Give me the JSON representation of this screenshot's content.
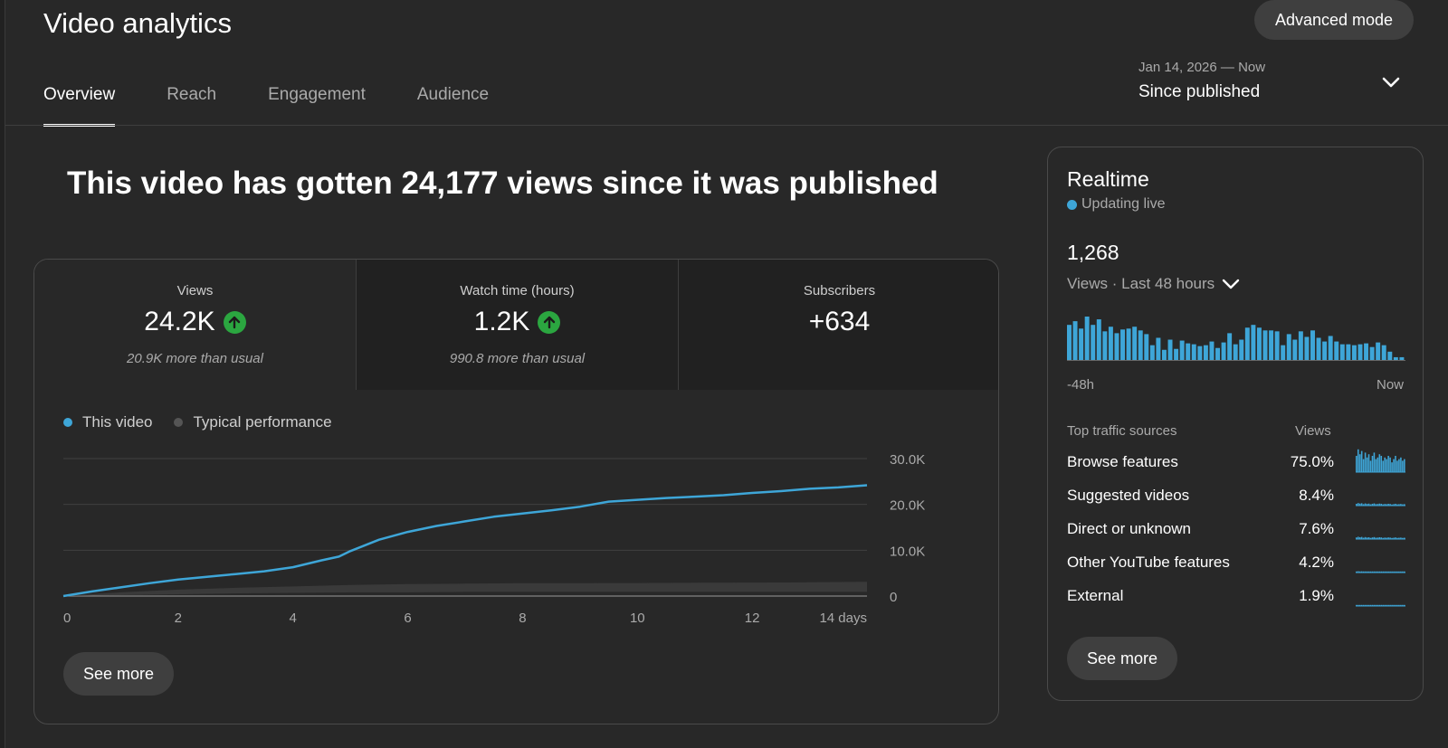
{
  "header": {
    "title": "Video analytics",
    "advanced_mode_label": "Advanced mode"
  },
  "tabs": [
    {
      "label": "Overview",
      "active": true
    },
    {
      "label": "Reach",
      "active": false
    },
    {
      "label": "Engagement",
      "active": false
    },
    {
      "label": "Audience",
      "active": false
    }
  ],
  "date_range": {
    "range": "Jan 14, 2026 — Now",
    "label": "Since published"
  },
  "headline": "This video has gotten 24,177 views since it was published",
  "metrics": [
    {
      "label": "Views",
      "value": "24.2K",
      "trend": "up",
      "note": "20.9K more than usual"
    },
    {
      "label": "Watch time (hours)",
      "value": "1.2K",
      "trend": "up",
      "note": "990.8 more than usual"
    },
    {
      "label": "Subscribers",
      "value": "+634",
      "trend": "none",
      "note": ""
    }
  ],
  "colors": {
    "accent": "#3ea6d8",
    "typical": "#555555",
    "up_badge": "#2ba640",
    "background": "#282828"
  },
  "chart_data": {
    "type": "line",
    "legend": [
      "This video",
      "Typical performance"
    ],
    "x_ticks": [
      "0",
      "2",
      "4",
      "6",
      "8",
      "10",
      "12",
      "14 days"
    ],
    "y_ticks": [
      "30.0K",
      "20.0K",
      "10.0K",
      "0"
    ],
    "xlim": [
      0,
      14
    ],
    "ylim": [
      0,
      30000
    ],
    "series": [
      {
        "name": "This video",
        "x": [
          0,
          0.5,
          1,
          1.5,
          2,
          2.5,
          3,
          3.5,
          4,
          4.5,
          4.8,
          5,
          5.5,
          6,
          6.5,
          7,
          7.5,
          8,
          8.5,
          9,
          9.5,
          10,
          10.5,
          11,
          11.5,
          12,
          12.5,
          13,
          13.5,
          14
        ],
        "y": [
          0,
          1000,
          1900,
          2800,
          3600,
          4200,
          4800,
          5400,
          6300,
          7800,
          8600,
          9800,
          12300,
          14000,
          15300,
          16300,
          17300,
          18000,
          18700,
          19500,
          20600,
          21000,
          21400,
          21700,
          22000,
          22500,
          22900,
          23400,
          23700,
          24177
        ]
      },
      {
        "name": "Typical performance",
        "x": [
          0,
          1,
          2,
          3,
          4,
          5,
          6,
          7,
          8,
          9,
          10,
          11,
          12,
          13,
          14
        ],
        "y_low": [
          0,
          200,
          400,
          600,
          700,
          800,
          800,
          900,
          900,
          900,
          900,
          900,
          900,
          900,
          900
        ],
        "y_high": [
          0,
          800,
          1400,
          1800,
          2100,
          2400,
          2600,
          2700,
          2800,
          2800,
          2850,
          2900,
          2950,
          3000,
          3100
        ]
      }
    ]
  },
  "main_see_more": "See more",
  "realtime": {
    "title": "Realtime",
    "live_label": "Updating live",
    "count": "1,268",
    "period_label": "Views · Last 48 hours",
    "axis_left": "-48h",
    "axis_right": "Now",
    "bars": [
      38,
      42,
      34,
      47,
      38,
      44,
      31,
      36,
      29,
      33,
      34,
      36,
      32,
      28,
      16,
      24,
      11,
      22,
      12,
      21,
      18,
      17,
      15,
      16,
      20,
      13,
      19,
      29,
      17,
      22,
      35,
      38,
      35,
      32,
      32,
      31,
      16,
      28,
      22,
      31,
      25,
      32,
      24,
      20,
      26,
      20,
      17,
      17,
      16,
      17,
      18,
      14,
      19,
      16,
      9,
      3,
      3
    ],
    "traffic_header_left": "Top traffic sources",
    "traffic_header_right": "Views",
    "traffic_sources": [
      {
        "name": "Browse features",
        "pct": "75.0%",
        "level": 0.75
      },
      {
        "name": "Suggested videos",
        "pct": "8.4%",
        "level": 0.084
      },
      {
        "name": "Direct or unknown",
        "pct": "7.6%",
        "level": 0.076
      },
      {
        "name": "Other YouTube features",
        "pct": "4.2%",
        "level": 0.042
      },
      {
        "name": "External",
        "pct": "1.9%",
        "level": 0.019
      }
    ],
    "see_more": "See more"
  }
}
